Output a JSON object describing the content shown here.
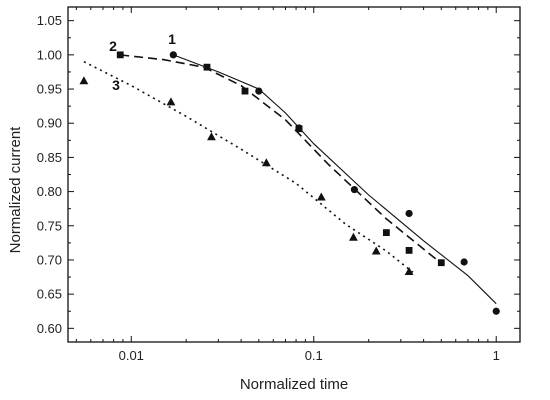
{
  "chart_data": {
    "type": "scatter",
    "xlabel": "Normalized time",
    "ylabel": "Normalized current",
    "x_scale": "log",
    "xlim": [
      0.0045,
      1.35
    ],
    "ylim": [
      0.58,
      1.07
    ],
    "x_ticks": [
      0.01,
      0.1,
      1
    ],
    "x_tick_labels": [
      "0.01",
      "0.1",
      "1"
    ],
    "y_ticks": [
      0.6,
      0.65,
      0.7,
      0.75,
      0.8,
      0.85,
      0.9,
      0.95,
      1.0,
      1.05
    ],
    "y_tick_labels": [
      "0.60",
      "0.65",
      "0.70",
      "0.75",
      "0.80",
      "0.85",
      "0.90",
      "0.95",
      "1.00",
      "1.05"
    ],
    "grid": false,
    "series": [
      {
        "name": "1",
        "marker": "circle",
        "line_style": "solid",
        "points": [
          {
            "x": 0.017,
            "y": 1.0
          },
          {
            "x": 0.05,
            "y": 0.947
          },
          {
            "x": 0.083,
            "y": 0.893
          },
          {
            "x": 0.167,
            "y": 0.803
          },
          {
            "x": 0.333,
            "y": 0.768
          },
          {
            "x": 0.667,
            "y": 0.697
          },
          {
            "x": 1.0,
            "y": 0.625
          }
        ],
        "fit": [
          {
            "x": 0.017,
            "y": 1.0
          },
          {
            "x": 0.03,
            "y": 0.975
          },
          {
            "x": 0.05,
            "y": 0.95
          },
          {
            "x": 0.07,
            "y": 0.915
          },
          {
            "x": 0.1,
            "y": 0.87
          },
          {
            "x": 0.2,
            "y": 0.795
          },
          {
            "x": 0.4,
            "y": 0.728
          },
          {
            "x": 0.7,
            "y": 0.677
          },
          {
            "x": 1.0,
            "y": 0.636
          }
        ]
      },
      {
        "name": "2",
        "marker": "square",
        "line_style": "dashed",
        "points": [
          {
            "x": 0.0087,
            "y": 1.0
          },
          {
            "x": 0.026,
            "y": 0.982
          },
          {
            "x": 0.042,
            "y": 0.947
          },
          {
            "x": 0.083,
            "y": 0.892
          },
          {
            "x": 0.25,
            "y": 0.74
          },
          {
            "x": 0.333,
            "y": 0.714
          },
          {
            "x": 0.5,
            "y": 0.696
          }
        ],
        "fit": [
          {
            "x": 0.0087,
            "y": 1.0
          },
          {
            "x": 0.015,
            "y": 0.993
          },
          {
            "x": 0.025,
            "y": 0.982
          },
          {
            "x": 0.04,
            "y": 0.955
          },
          {
            "x": 0.07,
            "y": 0.905
          },
          {
            "x": 0.12,
            "y": 0.84
          },
          {
            "x": 0.25,
            "y": 0.76
          },
          {
            "x": 0.5,
            "y": 0.695
          }
        ]
      },
      {
        "name": "3",
        "marker": "triangle",
        "line_style": "dotted",
        "points": [
          {
            "x": 0.0055,
            "y": 0.962
          },
          {
            "x": 0.0165,
            "y": 0.931
          },
          {
            "x": 0.0275,
            "y": 0.88
          },
          {
            "x": 0.055,
            "y": 0.842
          },
          {
            "x": 0.11,
            "y": 0.792
          },
          {
            "x": 0.165,
            "y": 0.733
          },
          {
            "x": 0.22,
            "y": 0.713
          },
          {
            "x": 0.333,
            "y": 0.683
          }
        ],
        "fit": [
          {
            "x": 0.0055,
            "y": 0.99
          },
          {
            "x": 0.01,
            "y": 0.955
          },
          {
            "x": 0.02,
            "y": 0.91
          },
          {
            "x": 0.04,
            "y": 0.862
          },
          {
            "x": 0.08,
            "y": 0.812
          },
          {
            "x": 0.15,
            "y": 0.752
          },
          {
            "x": 0.25,
            "y": 0.713
          },
          {
            "x": 0.35,
            "y": 0.682
          }
        ]
      }
    ],
    "curve_labels": [
      "1",
      "2",
      "3"
    ]
  }
}
